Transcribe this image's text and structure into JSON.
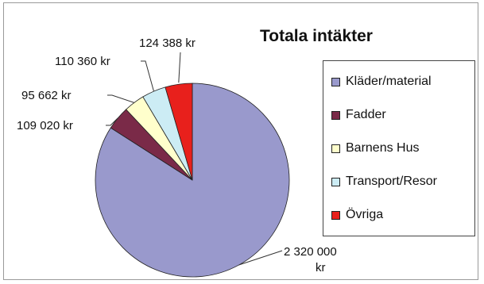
{
  "chart_data": {
    "type": "pie",
    "title": "Totala intäkter",
    "categories": [
      "Kläder/material",
      "Fadder",
      "Barnens Hus",
      "Transport/Resor",
      "Övriga"
    ],
    "values": [
      2320000,
      109020,
      95662,
      110360,
      124388
    ],
    "data_labels": [
      "2 320 000 kr",
      "109 020 kr",
      "95 662 kr",
      "110 360 kr",
      "124 388 kr"
    ],
    "colors": [
      "#9999cc",
      "#7a2a48",
      "#ffffcc",
      "#ccecf4",
      "#e8201c"
    ],
    "legend_position": "right"
  }
}
